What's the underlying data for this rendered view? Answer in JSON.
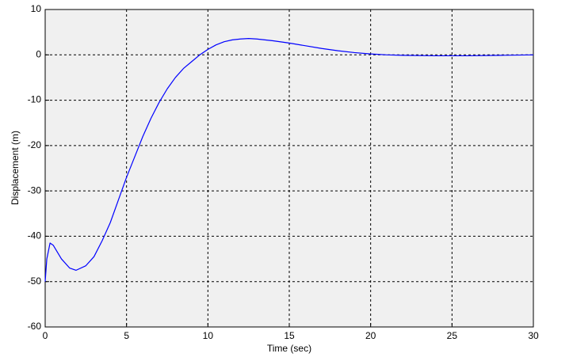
{
  "chart_data": {
    "type": "line",
    "xlabel": "Time (sec)",
    "ylabel": "Displacement (m)",
    "x": [
      0,
      0.1,
      0.3,
      0.5,
      1,
      1.5,
      1.9,
      2.5,
      3,
      3.5,
      4,
      4.5,
      5,
      5.5,
      6,
      6.5,
      7,
      7.5,
      8,
      8.5,
      9,
      9.5,
      10,
      10.5,
      11,
      11.5,
      12,
      12.5,
      13,
      14,
      15,
      16,
      17,
      18,
      19,
      20,
      21,
      22,
      24,
      26,
      28,
      30
    ],
    "series": [
      {
        "color": "#0000ff",
        "values": [
          -50,
          -45,
          -41.5,
          -42,
          -45,
          -47,
          -47.5,
          -46.5,
          -44.5,
          -41,
          -37,
          -32,
          -27,
          -22.5,
          -18,
          -14,
          -10.5,
          -7.5,
          -5,
          -3,
          -1.5,
          0,
          1.2,
          2.2,
          2.9,
          3.3,
          3.5,
          3.6,
          3.5,
          3.1,
          2.6,
          2.0,
          1.4,
          0.9,
          0.5,
          0.2,
          0,
          -0.1,
          -0.2,
          -0.2,
          -0.1,
          0
        ]
      }
    ],
    "xlim": [
      0,
      30
    ],
    "xticks": [
      0,
      5,
      10,
      15,
      20,
      25,
      30
    ],
    "ylim": [
      -60,
      10
    ],
    "yticks": [
      -60,
      -50,
      -40,
      -30,
      -20,
      -10,
      0,
      10
    ],
    "grid": true
  }
}
